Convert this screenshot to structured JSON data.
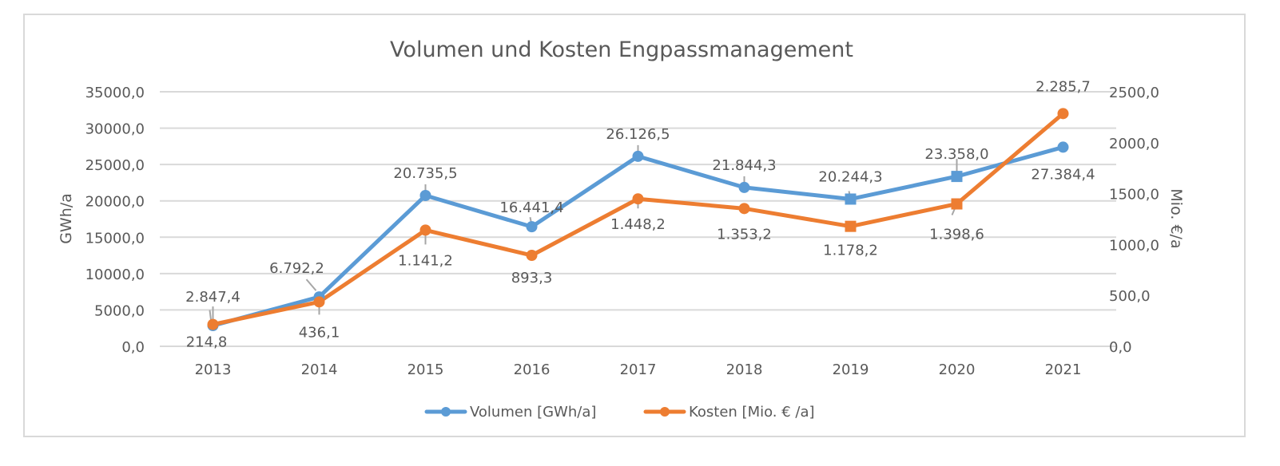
{
  "chart_data": {
    "type": "line",
    "title": "Volumen und Kosten Engpassmanagement",
    "categories": [
      "2013",
      "2014",
      "2015",
      "2016",
      "2017",
      "2018",
      "2019",
      "2020",
      "2021"
    ],
    "series": [
      {
        "name": "Volumen [GWh/a]",
        "axis": "left",
        "color": "#5b9bd5",
        "values": [
          2847.4,
          6792.2,
          20735.5,
          16441.4,
          26126.5,
          21844.3,
          20244.3,
          23358.0,
          27384.4
        ],
        "markers": [
          "circle",
          "circle",
          "circle",
          "circle",
          "circle",
          "circle",
          "square",
          "square",
          "circle"
        ],
        "labels": [
          "2.847,4",
          "6.792,2",
          "20.735,5",
          "16.441,4",
          "26.126,5",
          "21.844,3",
          "20.244,3",
          "23.358,0",
          "27.384,4"
        ]
      },
      {
        "name": "Kosten [Mio. € /a]",
        "axis": "right",
        "color": "#ed7d31",
        "values": [
          214.8,
          436.1,
          1141.2,
          893.3,
          1448.2,
          1353.2,
          1178.2,
          1398.6,
          2285.7
        ],
        "markers": [
          "circle",
          "circle",
          "circle",
          "circle",
          "circle",
          "circle",
          "square",
          "square",
          "circle"
        ],
        "labels": [
          "214,8",
          "436,1",
          "1.141,2",
          "893,3",
          "1.448,2",
          "1.353,2",
          "1.178,2",
          "1.398,6",
          "2.285,7"
        ]
      }
    ],
    "ylabel": "GWh/a",
    "ylabel_right": "Mio. €/a",
    "ylim": [
      0,
      35000
    ],
    "ylim_right": [
      0,
      2500
    ],
    "yticks": [
      "0,0",
      "5000,0",
      "10000,0",
      "15000,0",
      "20000,0",
      "25000,0",
      "30000,0",
      "35000,0"
    ],
    "yticks_right": [
      "0,0",
      "500,0",
      "1000,0",
      "1500,0",
      "2000,0",
      "2500,0"
    ],
    "grid": true,
    "legend_position": "bottom"
  }
}
